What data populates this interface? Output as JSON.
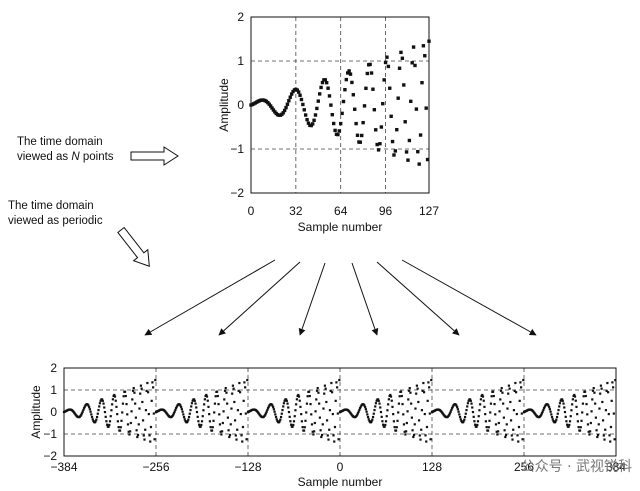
{
  "annotations": {
    "nPoints": {
      "line1": "The time domain",
      "line2a": "viewed as ",
      "line2b": "N",
      "line2c": " points"
    },
    "periodic": {
      "line1": "The time domain",
      "line2": "viewed as periodic"
    }
  },
  "watermark": "公众号 · 武视锐科",
  "chart_data": [
    {
      "type": "scatter",
      "xlabel": "Sample number",
      "ylabel": "Amplitude",
      "xlim": [
        0,
        127
      ],
      "ylim": [
        -2,
        2
      ],
      "xticks": [
        "0",
        "32",
        "64",
        "96",
        "127"
      ],
      "xtick_values": [
        0,
        32,
        64,
        96,
        127
      ],
      "yticks": [
        "2",
        "1",
        "0",
        "−1",
        "−2"
      ],
      "ytick_values": [
        2,
        1,
        0,
        -1,
        -2
      ],
      "grid": "dashed",
      "series": [
        {
          "samples": 128,
          "signal": "chirp",
          "amplitude_start": 0.05,
          "amplitude_end": 1.45,
          "end_value": 1.45,
          "periods_start": 28,
          "periods_end": 6
        }
      ]
    },
    {
      "type": "scatter",
      "xlabel": "Sample number",
      "ylabel": "Amplitude",
      "xlim": [
        -384,
        384
      ],
      "ylim": [
        -2,
        2
      ],
      "xticks": [
        "−384",
        "−256",
        "−128",
        "0",
        "128",
        "256",
        "384"
      ],
      "xtick_values": [
        -384,
        -256,
        -128,
        0,
        128,
        256,
        384
      ],
      "yticks": [
        "2",
        "1",
        "0",
        "−1",
        "−2"
      ],
      "ytick_values": [
        2,
        1,
        0,
        -1,
        -2
      ],
      "grid": "dashed",
      "series": [
        {
          "samples": 768,
          "signal": "periodic repetition of the 128-point chirp",
          "period": 128
        }
      ]
    }
  ]
}
